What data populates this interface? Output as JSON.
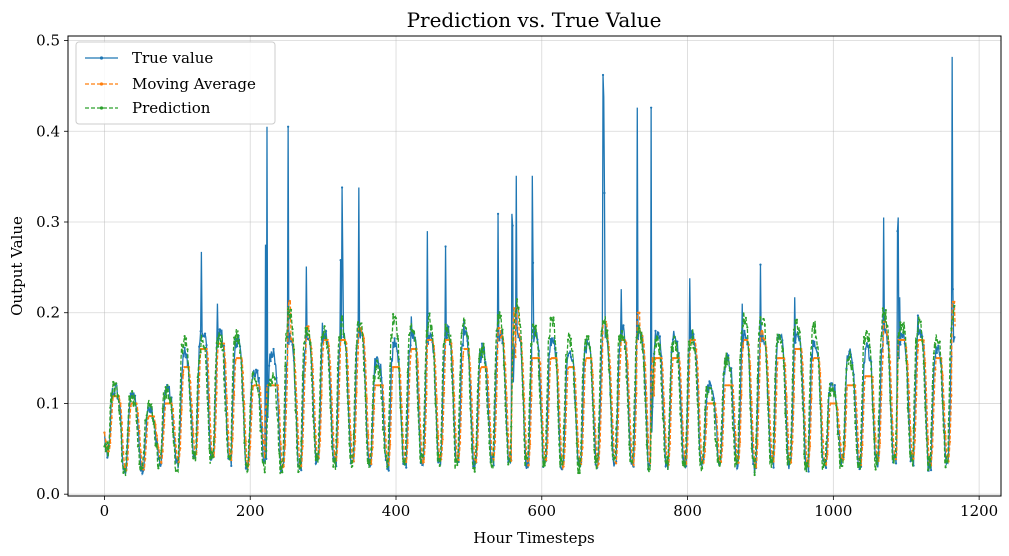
{
  "chart_data": {
    "type": "line",
    "title": "Prediction vs. True Value",
    "xlabel": "Hour Timesteps",
    "ylabel": "Output Value",
    "xlim": [
      -50,
      1230
    ],
    "ylim": [
      -0.002,
      0.505
    ],
    "xticks": [
      0,
      200,
      400,
      600,
      800,
      1000,
      1200
    ],
    "yticks": [
      0.0,
      0.1,
      0.2,
      0.3,
      0.4,
      0.5
    ],
    "xtick_labels": [
      "0",
      "200",
      "400",
      "600",
      "800",
      "1000",
      "1200"
    ],
    "ytick_labels": [
      "0.0",
      "0.1",
      "0.2",
      "0.3",
      "0.4",
      "0.5"
    ],
    "grid": true,
    "legend": "top-left",
    "period_hours": 24,
    "n_points": 1168,
    "series": [
      {
        "name": "True value",
        "color": "#1f77b4",
        "style": "solid",
        "daily_minima": [
          0.043,
          0.022,
          0.027,
          0.032,
          0.026,
          0.032,
          0.03,
          0.03,
          0.028,
          0.026,
          0.022,
          0.024,
          0.03,
          0.028,
          0.028,
          0.03,
          0.026,
          0.028,
          0.028,
          0.03,
          0.026,
          0.028,
          0.028,
          0.03,
          0.026,
          0.028,
          0.028,
          0.026,
          0.028,
          0.03,
          0.028,
          0.026,
          0.024,
          0.028,
          0.03,
          0.028,
          0.028,
          0.022,
          0.028,
          0.026,
          0.024,
          0.028,
          0.03,
          0.028,
          0.028,
          0.028,
          0.03,
          0.026,
          0.028
        ],
        "daily_maxima": [
          0.117,
          0.11,
          0.093,
          0.115,
          0.155,
          0.267,
          0.21,
          0.171,
          0.137,
          0.155,
          0.405,
          0.251,
          0.189,
          0.258,
          0.338,
          0.15,
          0.167,
          0.196,
          0.29,
          0.273,
          0.191,
          0.16,
          0.309,
          0.351,
          0.177,
          0.171,
          0.155,
          0.164,
          0.462,
          0.226,
          0.426,
          0.18,
          0.18,
          0.238,
          0.12,
          0.15,
          0.21,
          0.253,
          0.176,
          0.217,
          0.169,
          0.12,
          0.153,
          0.16,
          0.305,
          0.217,
          0.197,
          0.163,
          0.482
        ],
        "spikes": [
          {
            "x": 684,
            "y": 0.462
          },
          {
            "x": 685,
            "y": 0.438
          },
          {
            "x": 686,
            "y": 0.332
          },
          {
            "x": 587,
            "y": 0.351
          },
          {
            "x": 588,
            "y": 0.255
          },
          {
            "x": 559,
            "y": 0.309
          },
          {
            "x": 560,
            "y": 0.296
          },
          {
            "x": 223,
            "y": 0.405
          },
          {
            "x": 221,
            "y": 0.275
          },
          {
            "x": 326,
            "y": 0.338
          },
          {
            "x": 327,
            "y": 0.258
          },
          {
            "x": 1163,
            "y": 0.482
          },
          {
            "x": 1164,
            "y": 0.226
          },
          {
            "x": 1089,
            "y": 0.305
          },
          {
            "x": 1088,
            "y": 0.29
          },
          {
            "x": 750,
            "y": 0.426
          }
        ]
      },
      {
        "name": "Moving Average",
        "color": "#ff7f0e",
        "style": "dashed",
        "daily_maxima": [
          0.108,
          0.1,
          0.086,
          0.1,
          0.14,
          0.16,
          0.166,
          0.15,
          0.12,
          0.12,
          0.213,
          0.185,
          0.17,
          0.17,
          0.183,
          0.12,
          0.14,
          0.16,
          0.17,
          0.17,
          0.16,
          0.14,
          0.183,
          0.205,
          0.15,
          0.15,
          0.14,
          0.15,
          0.19,
          0.17,
          0.2,
          0.15,
          0.15,
          0.17,
          0.1,
          0.12,
          0.17,
          0.18,
          0.15,
          0.16,
          0.15,
          0.1,
          0.12,
          0.13,
          0.19,
          0.17,
          0.17,
          0.15,
          0.212
        ]
      },
      {
        "name": "Prediction",
        "color": "#2ca02c",
        "style": "dashed",
        "daily_maxima": [
          0.118,
          0.11,
          0.096,
          0.115,
          0.17,
          0.17,
          0.176,
          0.178,
          0.135,
          0.13,
          0.2,
          0.183,
          0.18,
          0.19,
          0.19,
          0.14,
          0.195,
          0.185,
          0.19,
          0.19,
          0.19,
          0.16,
          0.195,
          0.21,
          0.185,
          0.19,
          0.17,
          0.17,
          0.19,
          0.18,
          0.18,
          0.17,
          0.17,
          0.175,
          0.12,
          0.15,
          0.198,
          0.195,
          0.18,
          0.19,
          0.185,
          0.12,
          0.15,
          0.18,
          0.2,
          0.19,
          0.188,
          0.175,
          0.205
        ]
      }
    ]
  }
}
